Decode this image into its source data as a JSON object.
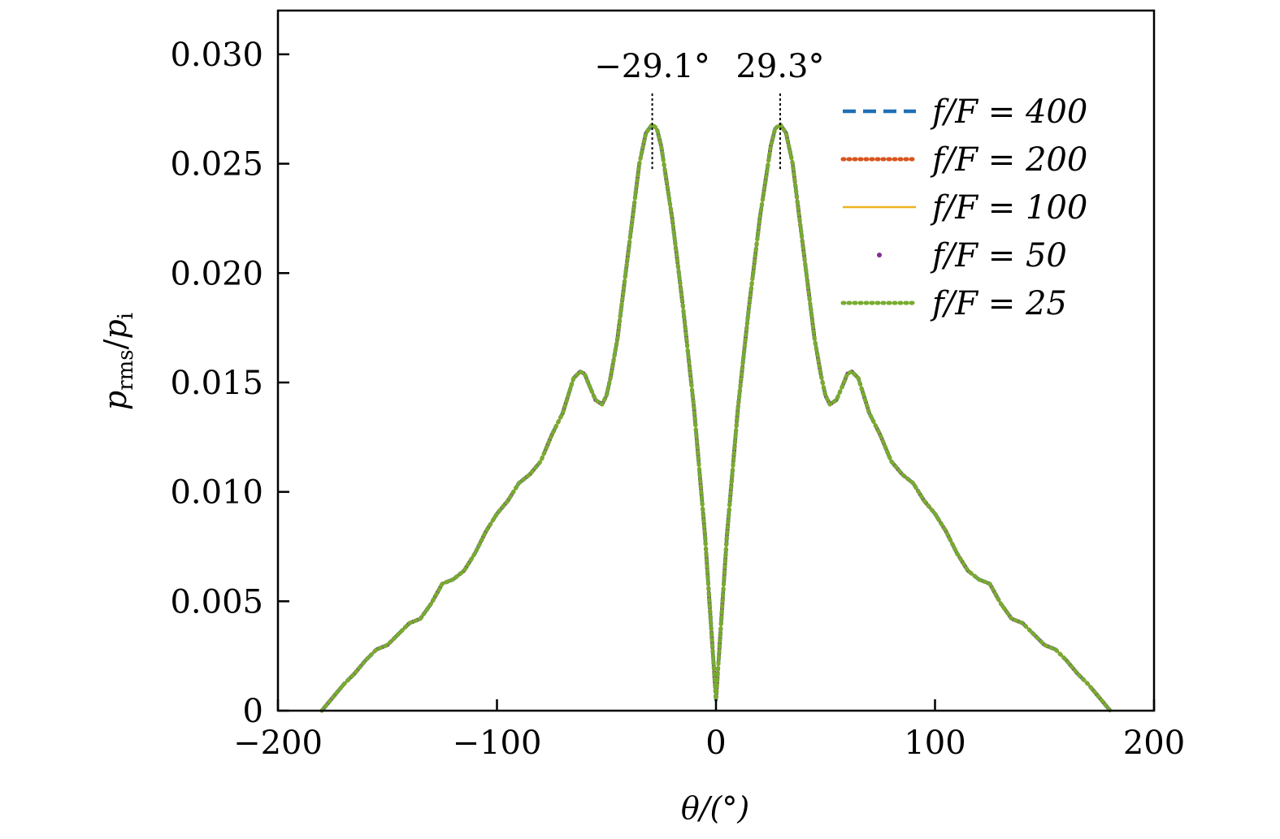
{
  "chart_data": {
    "type": "line",
    "title": "",
    "xlabel": "θ/(°)",
    "ylabel": "p_rms/p_i",
    "ylabel_main": "p",
    "ylabel_sub1": "rms",
    "ylabel_sep": "/",
    "ylabel_sub2": "i",
    "xlim": [
      -200,
      200
    ],
    "ylim": [
      0,
      0.032
    ],
    "xticks": [
      -200,
      -100,
      0,
      100,
      200
    ],
    "xtick_labels": [
      "−200",
      "−100",
      "0",
      "100",
      "200"
    ],
    "yticks": [
      0,
      0.005,
      0.01,
      0.015,
      0.02,
      0.025,
      0.03
    ],
    "ytick_labels": [
      "0",
      "0.005",
      "0.010",
      "0.015",
      "0.020",
      "0.025",
      "0.030"
    ],
    "grid": false,
    "legend_position": "top-right",
    "annotations": [
      {
        "x": -29.1,
        "label": "−29.1°"
      },
      {
        "x": 29.3,
        "label": "29.3°"
      }
    ],
    "x": [
      -180,
      -175,
      -170,
      -165,
      -160,
      -155,
      -150,
      -145,
      -140,
      -135,
      -130,
      -125,
      -120,
      -115,
      -110,
      -105,
      -100,
      -95,
      -90,
      -85,
      -80,
      -75,
      -70,
      -65,
      -62,
      -60,
      -58,
      -55,
      -52,
      -50,
      -48,
      -45,
      -40,
      -35,
      -32,
      -29.1,
      -27,
      -25,
      -20,
      -15,
      -10,
      -5,
      -2,
      0,
      2,
      5,
      10,
      15,
      20,
      25,
      27,
      29.3,
      32,
      35,
      40,
      45,
      48,
      50,
      52,
      55,
      58,
      60,
      62,
      65,
      70,
      75,
      80,
      85,
      90,
      95,
      100,
      105,
      110,
      115,
      120,
      125,
      130,
      135,
      140,
      145,
      150,
      155,
      160,
      165,
      170,
      175,
      180
    ],
    "series": [
      {
        "name": "f/F = 400",
        "color": "#1f6fb4",
        "style": "dashed",
        "values": [
          0.0,
          0.0006,
          0.0012,
          0.0017,
          0.0023,
          0.0028,
          0.003,
          0.0035,
          0.004,
          0.0042,
          0.0049,
          0.0058,
          0.006,
          0.0064,
          0.0072,
          0.0082,
          0.009,
          0.0096,
          0.0104,
          0.0108,
          0.0114,
          0.0126,
          0.0136,
          0.0152,
          0.0155,
          0.0154,
          0.0149,
          0.0142,
          0.014,
          0.0144,
          0.0153,
          0.017,
          0.021,
          0.025,
          0.0264,
          0.0268,
          0.0266,
          0.0258,
          0.0225,
          0.0184,
          0.0138,
          0.008,
          0.0035,
          0.0005,
          0.0035,
          0.008,
          0.0138,
          0.0184,
          0.0225,
          0.0258,
          0.0266,
          0.0268,
          0.0264,
          0.025,
          0.021,
          0.017,
          0.0153,
          0.0144,
          0.014,
          0.0142,
          0.0149,
          0.0154,
          0.0155,
          0.0152,
          0.0136,
          0.0126,
          0.0114,
          0.0108,
          0.0104,
          0.0096,
          0.009,
          0.0082,
          0.0072,
          0.0064,
          0.006,
          0.0058,
          0.0049,
          0.0042,
          0.004,
          0.0035,
          0.003,
          0.0028,
          0.0023,
          0.0017,
          0.0012,
          0.0006,
          0.0
        ]
      },
      {
        "name": "f/F = 200",
        "color": "#d9541e",
        "style": "dotted",
        "values": [
          0.0,
          0.0006,
          0.0012,
          0.0017,
          0.0023,
          0.0028,
          0.003,
          0.0035,
          0.004,
          0.0042,
          0.0049,
          0.0058,
          0.006,
          0.0064,
          0.0072,
          0.0082,
          0.009,
          0.0096,
          0.0104,
          0.0108,
          0.0114,
          0.0126,
          0.0136,
          0.0152,
          0.0155,
          0.0154,
          0.0149,
          0.0142,
          0.014,
          0.0144,
          0.0153,
          0.017,
          0.021,
          0.025,
          0.0264,
          0.0268,
          0.0266,
          0.0258,
          0.0225,
          0.0184,
          0.0138,
          0.008,
          0.0035,
          0.0005,
          0.0035,
          0.008,
          0.0138,
          0.0184,
          0.0225,
          0.0258,
          0.0266,
          0.0268,
          0.0264,
          0.025,
          0.021,
          0.017,
          0.0153,
          0.0144,
          0.014,
          0.0142,
          0.0149,
          0.0154,
          0.0155,
          0.0152,
          0.0136,
          0.0126,
          0.0114,
          0.0108,
          0.0104,
          0.0096,
          0.009,
          0.0082,
          0.0072,
          0.0064,
          0.006,
          0.0058,
          0.0049,
          0.0042,
          0.004,
          0.0035,
          0.003,
          0.0028,
          0.0023,
          0.0017,
          0.0012,
          0.0006,
          0.0
        ]
      },
      {
        "name": "f/F = 100",
        "color": "#edb120",
        "style": "solid",
        "values": [
          0.0,
          0.0006,
          0.0012,
          0.0017,
          0.0023,
          0.0028,
          0.003,
          0.0035,
          0.004,
          0.0042,
          0.0049,
          0.0058,
          0.006,
          0.0064,
          0.0072,
          0.0082,
          0.009,
          0.0096,
          0.0104,
          0.0108,
          0.0114,
          0.0126,
          0.0136,
          0.0152,
          0.0155,
          0.0154,
          0.0149,
          0.0142,
          0.014,
          0.0144,
          0.0153,
          0.017,
          0.021,
          0.025,
          0.0264,
          0.0268,
          0.0266,
          0.0258,
          0.0225,
          0.0184,
          0.0138,
          0.008,
          0.0035,
          0.0005,
          0.0035,
          0.008,
          0.0138,
          0.0184,
          0.0225,
          0.0258,
          0.0266,
          0.0268,
          0.0264,
          0.025,
          0.021,
          0.017,
          0.0153,
          0.0144,
          0.014,
          0.0142,
          0.0149,
          0.0154,
          0.0155,
          0.0152,
          0.0136,
          0.0126,
          0.0114,
          0.0108,
          0.0104,
          0.0096,
          0.009,
          0.0082,
          0.0072,
          0.0064,
          0.006,
          0.0058,
          0.0049,
          0.0042,
          0.004,
          0.0035,
          0.003,
          0.0028,
          0.0023,
          0.0017,
          0.0012,
          0.0006,
          0.0
        ]
      },
      {
        "name": "f/F = 50",
        "color": "#7e2f8e",
        "style": "point",
        "values": [
          0.0,
          0.0006,
          0.0012,
          0.0017,
          0.0023,
          0.0028,
          0.003,
          0.0035,
          0.004,
          0.0042,
          0.0049,
          0.0058,
          0.006,
          0.0064,
          0.0072,
          0.0082,
          0.009,
          0.0096,
          0.0104,
          0.0108,
          0.0114,
          0.0126,
          0.0136,
          0.0152,
          0.0155,
          0.0154,
          0.0149,
          0.0142,
          0.014,
          0.0144,
          0.0153,
          0.017,
          0.021,
          0.025,
          0.0264,
          0.0268,
          0.0266,
          0.0258,
          0.0225,
          0.0184,
          0.0138,
          0.008,
          0.0035,
          0.0005,
          0.0035,
          0.008,
          0.0138,
          0.0184,
          0.0225,
          0.0258,
          0.0266,
          0.0268,
          0.0264,
          0.025,
          0.021,
          0.017,
          0.0153,
          0.0144,
          0.014,
          0.0142,
          0.0149,
          0.0154,
          0.0155,
          0.0152,
          0.0136,
          0.0126,
          0.0114,
          0.0108,
          0.0104,
          0.0096,
          0.009,
          0.0082,
          0.0072,
          0.0064,
          0.006,
          0.0058,
          0.0049,
          0.0042,
          0.004,
          0.0035,
          0.003,
          0.0028,
          0.0023,
          0.0017,
          0.0012,
          0.0006,
          0.0
        ]
      },
      {
        "name": "f/F = 25",
        "color": "#77ac30",
        "style": "dotted",
        "values": [
          0.0,
          0.0006,
          0.0012,
          0.0017,
          0.0023,
          0.0028,
          0.003,
          0.0035,
          0.004,
          0.0042,
          0.0049,
          0.0058,
          0.006,
          0.0064,
          0.0072,
          0.0082,
          0.009,
          0.0096,
          0.0104,
          0.0108,
          0.0114,
          0.0126,
          0.0136,
          0.0152,
          0.0155,
          0.0154,
          0.0149,
          0.0142,
          0.014,
          0.0144,
          0.0153,
          0.017,
          0.021,
          0.025,
          0.0264,
          0.0268,
          0.0266,
          0.0258,
          0.0225,
          0.0184,
          0.0138,
          0.008,
          0.0035,
          0.0005,
          0.0035,
          0.008,
          0.0138,
          0.0184,
          0.0225,
          0.0258,
          0.0266,
          0.0268,
          0.0264,
          0.025,
          0.021,
          0.017,
          0.0153,
          0.0144,
          0.014,
          0.0142,
          0.0149,
          0.0154,
          0.0155,
          0.0152,
          0.0136,
          0.0126,
          0.0114,
          0.0108,
          0.0104,
          0.0096,
          0.009,
          0.0082,
          0.0072,
          0.0064,
          0.006,
          0.0058,
          0.0049,
          0.0042,
          0.004,
          0.0035,
          0.003,
          0.0028,
          0.0023,
          0.0017,
          0.0012,
          0.0006,
          0.0
        ]
      }
    ]
  }
}
